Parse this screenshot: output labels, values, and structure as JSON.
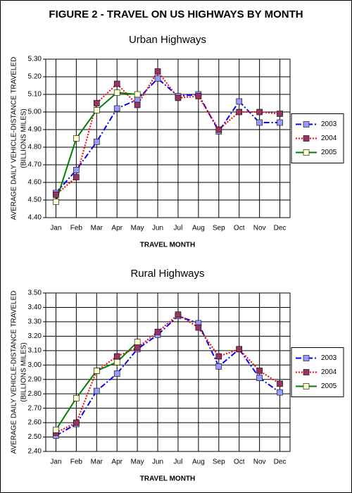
{
  "title": "FIGURE 2 - TRAVEL ON US HIGHWAYS BY MONTH",
  "chart_data": [
    {
      "type": "line",
      "title": "Urban Highways",
      "x_label": "TRAVEL MONTH",
      "y_label": [
        "AVERAGE DAILY VEHICLE-DISTANCE TRAVELED",
        "(BILLIONS MILES)"
      ],
      "categories": [
        "Jan",
        "Feb",
        "Mar",
        "Apr",
        "May",
        "Jun",
        "Jul",
        "Aug",
        "Sep",
        "Oct",
        "Nov",
        "Dec"
      ],
      "series": [
        {
          "name": "2003",
          "color": "#0000ff",
          "marker_color": "#9999ff",
          "line_style": "dashdot",
          "values": [
            4.54,
            4.67,
            4.83,
            5.02,
            5.07,
            5.19,
            5.09,
            5.1,
            4.89,
            5.06,
            4.94,
            4.94
          ]
        },
        {
          "name": "2004",
          "color": "#ff0000",
          "marker_color": "#993366",
          "line_style": "dotted",
          "values": [
            4.53,
            4.63,
            5.05,
            5.16,
            5.04,
            5.23,
            5.08,
            5.09,
            4.9,
            5.0,
            5.0,
            4.99
          ]
        },
        {
          "name": "2005",
          "color": "#008000",
          "marker_color": "#ffffcc",
          "line_style": "solid",
          "values": [
            4.49,
            4.85,
            5.01,
            5.11,
            5.1,
            null,
            null,
            null,
            null,
            null,
            null,
            null
          ]
        }
      ],
      "ylim": [
        4.4,
        5.3
      ],
      "yticks": [
        {
          "value": 4.4,
          "label": "4.40"
        },
        {
          "value": 4.5,
          "label": "4.50"
        },
        {
          "value": 4.6,
          "label": "4.60"
        },
        {
          "value": 4.7,
          "label": "4.70"
        },
        {
          "value": 4.8,
          "label": "4.80"
        },
        {
          "value": 4.9,
          "label": "4.90"
        },
        {
          "value": 5.0,
          "label": "5.00"
        },
        {
          "value": 5.1,
          "label": "5.10"
        },
        {
          "value": 5.2,
          "label": "5.20"
        },
        {
          "value": 5.3,
          "label": "5.30"
        }
      ],
      "grid": true,
      "legend": "right"
    },
    {
      "type": "line",
      "title": "Rural Highways",
      "x_label": "TRAVEL MONTH",
      "y_label": [
        "AVERAGE DAILY VEHICLE-DISTANCE TRAVELED",
        "(BILLIONS MILES)"
      ],
      "categories": [
        "Jan",
        "Feb",
        "Mar",
        "Apr",
        "May",
        "Jun",
        "Jul",
        "Aug",
        "Sep",
        "Oct",
        "Nov",
        "Dec"
      ],
      "series": [
        {
          "name": "2003",
          "color": "#0000ff",
          "marker_color": "#9999ff",
          "line_style": "dashdot",
          "values": [
            2.51,
            2.59,
            2.82,
            2.94,
            3.11,
            3.21,
            3.34,
            3.29,
            2.99,
            3.11,
            2.91,
            2.81
          ]
        },
        {
          "name": "2004",
          "color": "#ff0000",
          "marker_color": "#993366",
          "line_style": "dotted",
          "values": [
            2.53,
            2.6,
            2.96,
            3.06,
            3.12,
            3.23,
            3.35,
            3.26,
            3.06,
            3.11,
            2.96,
            2.87
          ]
        },
        {
          "name": "2005",
          "color": "#008000",
          "marker_color": "#ffffcc",
          "line_style": "solid",
          "values": [
            2.55,
            2.77,
            2.96,
            3.02,
            3.16,
            null,
            null,
            null,
            null,
            null,
            null,
            null
          ]
        }
      ],
      "ylim": [
        2.4,
        3.5
      ],
      "yticks": [
        {
          "value": 2.4,
          "label": "2.40"
        },
        {
          "value": 2.5,
          "label": "2.50"
        },
        {
          "value": 2.6,
          "label": "2.60"
        },
        {
          "value": 2.7,
          "label": "2.70"
        },
        {
          "value": 2.8,
          "label": "2.80"
        },
        {
          "value": 2.9,
          "label": "2.90"
        },
        {
          "value": 3.0,
          "label": "3.00"
        },
        {
          "value": 3.1,
          "label": "3.10"
        },
        {
          "value": 3.2,
          "label": "3.20"
        },
        {
          "value": 3.3,
          "label": "3.30"
        },
        {
          "value": 3.4,
          "label": "3.40"
        },
        {
          "value": 3.5,
          "label": "3.50"
        }
      ],
      "grid": true,
      "legend": "right"
    }
  ]
}
